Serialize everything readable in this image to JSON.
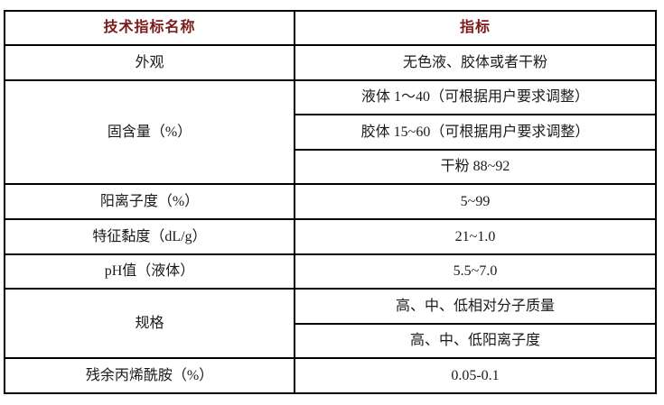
{
  "colors": {
    "header_text": "#7b1b1b",
    "body_text": "#1a1a1a",
    "border": "#000000",
    "background": "#ffffff"
  },
  "table": {
    "header": {
      "name_column": "技术指标名称",
      "value_column": "指标"
    },
    "rows": [
      {
        "name": "外观",
        "values": [
          "无色液、胶体或者干粉"
        ]
      },
      {
        "name": "固含量（%）",
        "values": [
          "液体 1～40（可根据用户要求调整）",
          "胶体 15~60（可根据用户要求调整）",
          "干粉 88~92"
        ]
      },
      {
        "name": "阳离子度（%）",
        "values": [
          "5~99"
        ]
      },
      {
        "name": "特征黏度（dL/g）",
        "values": [
          "21~1.0"
        ]
      },
      {
        "name": "pH值（液体）",
        "values": [
          "5.5~7.0"
        ]
      },
      {
        "name": "规格",
        "values": [
          "高、中、低相对分子质量",
          "高、中、低阳离子度"
        ]
      },
      {
        "name": "残余丙烯酰胺（%）",
        "values": [
          "0.05-0.1"
        ]
      }
    ]
  }
}
